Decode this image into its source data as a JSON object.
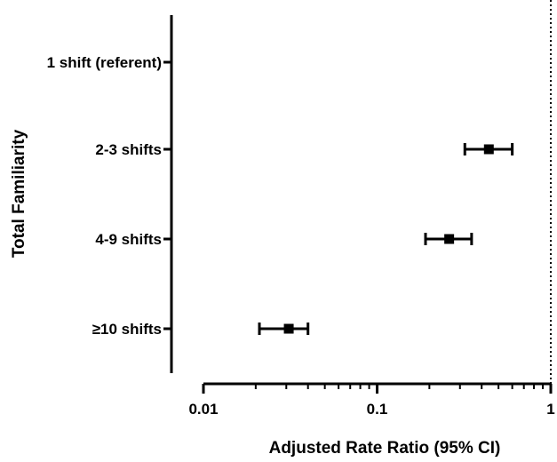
{
  "chart_data": {
    "type": "forest",
    "title": "",
    "xlabel": "Adjusted Rate Ratio (95% CI)",
    "ylabel": "Total Familiarity",
    "x_scale": "log",
    "xlim": [
      0.01,
      1
    ],
    "x_ticks": [
      {
        "value": 0.01,
        "label": "0.01"
      },
      {
        "value": 0.1,
        "label": "0.1"
      },
      {
        "value": 1,
        "label": "1"
      }
    ],
    "reference_line": 1,
    "categories": [
      "1 shift (referent)",
      "2-3 shifts",
      "4-9 shifts",
      "≥10 shifts"
    ],
    "estimates": [
      {
        "category": "1 shift (referent)",
        "value": null,
        "ci_low": null,
        "ci_high": null
      },
      {
        "category": "2-3 shifts",
        "value": 0.44,
        "ci_low": 0.32,
        "ci_high": 0.6
      },
      {
        "category": "4-9 shifts",
        "value": 0.26,
        "ci_low": 0.19,
        "ci_high": 0.35
      },
      {
        "category": "≥10 shifts",
        "value": 0.031,
        "ci_low": 0.021,
        "ci_high": 0.04
      }
    ],
    "grid": false,
    "legend": "none",
    "colors": {
      "marker": "#000000",
      "axis": "#000000",
      "reference_line": "#000000"
    }
  }
}
